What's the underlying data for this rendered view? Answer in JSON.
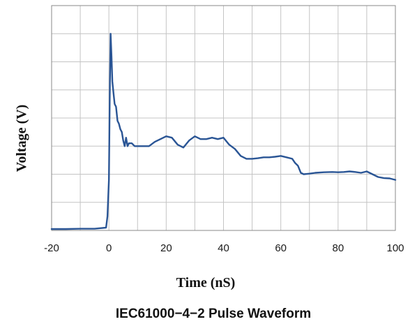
{
  "chart_data": {
    "type": "line",
    "title": "IEC61000−4−2 Pulse Waveform",
    "xlabel": "Time  (nS)",
    "ylabel": "Voltage (V)",
    "xlim": [
      -20,
      100
    ],
    "ylim": [
      0,
      8
    ],
    "x_ticks": [
      "-20",
      "0",
      "20",
      "40",
      "60",
      "80",
      "100"
    ],
    "grid": true,
    "legend": "none",
    "line_color": "#2a5595",
    "series": [
      {
        "x": [
          -20,
          -15,
          -10,
          -5,
          -1,
          -0.5,
          0,
          0.3,
          0.6,
          0.9,
          1.2,
          1.6,
          2,
          2.5,
          3,
          3.5,
          4,
          4.5,
          5,
          5.5,
          6,
          6.5,
          7,
          8,
          9,
          10,
          12,
          14,
          16,
          18,
          20,
          22,
          24,
          26,
          28,
          30,
          32,
          34,
          36,
          38,
          40,
          42,
          44,
          46,
          48,
          50,
          52,
          54,
          56,
          58,
          60,
          62,
          64,
          65,
          66,
          67,
          68,
          70,
          72,
          75,
          78,
          80,
          82,
          84,
          86,
          88,
          90,
          92,
          94,
          96,
          98,
          100
        ],
        "y": [
          0.05,
          0.05,
          0.06,
          0.06,
          0.1,
          0.5,
          1.8,
          4.8,
          7.0,
          6.2,
          5.3,
          4.9,
          4.5,
          4.4,
          3.9,
          3.8,
          3.6,
          3.5,
          3.2,
          3.0,
          3.3,
          3.0,
          3.1,
          3.1,
          3.0,
          3.0,
          3.0,
          3.0,
          3.15,
          3.25,
          3.35,
          3.3,
          3.05,
          2.95,
          3.2,
          3.35,
          3.25,
          3.25,
          3.3,
          3.25,
          3.3,
          3.05,
          2.9,
          2.65,
          2.55,
          2.55,
          2.57,
          2.6,
          2.6,
          2.62,
          2.65,
          2.6,
          2.55,
          2.4,
          2.3,
          2.05,
          2.0,
          2.02,
          2.05,
          2.07,
          2.08,
          2.07,
          2.08,
          2.1,
          2.08,
          2.05,
          2.1,
          2.0,
          1.9,
          1.86,
          1.85,
          1.8
        ]
      }
    ]
  }
}
